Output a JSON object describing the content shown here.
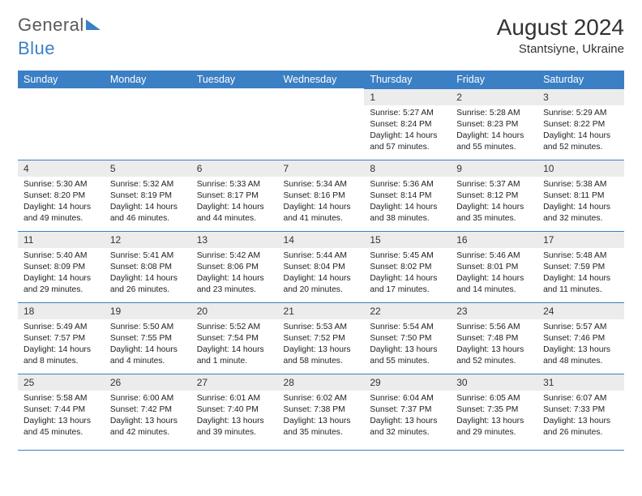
{
  "brand": {
    "part1": "General",
    "part2": "Blue"
  },
  "title": "August 2024",
  "location": "Stantsiyne, Ukraine",
  "colors": {
    "header_bg": "#3b7fc4",
    "header_text": "#ffffff",
    "daynum_bg": "#ececec",
    "text": "#222222",
    "rule": "#3b7fc4",
    "page_bg": "#ffffff"
  },
  "typography": {
    "month_title_fontsize": 28,
    "location_fontsize": 15,
    "dayheader_fontsize": 12.5,
    "daynum_fontsize": 12,
    "body_fontsize": 10.3
  },
  "day_headers": [
    "Sunday",
    "Monday",
    "Tuesday",
    "Wednesday",
    "Thursday",
    "Friday",
    "Saturday"
  ],
  "weeks": [
    [
      null,
      null,
      null,
      null,
      {
        "n": "1",
        "sr": "Sunrise: 5:27 AM",
        "ss": "Sunset: 8:24 PM",
        "dl": "Daylight: 14 hours and 57 minutes."
      },
      {
        "n": "2",
        "sr": "Sunrise: 5:28 AM",
        "ss": "Sunset: 8:23 PM",
        "dl": "Daylight: 14 hours and 55 minutes."
      },
      {
        "n": "3",
        "sr": "Sunrise: 5:29 AM",
        "ss": "Sunset: 8:22 PM",
        "dl": "Daylight: 14 hours and 52 minutes."
      }
    ],
    [
      {
        "n": "4",
        "sr": "Sunrise: 5:30 AM",
        "ss": "Sunset: 8:20 PM",
        "dl": "Daylight: 14 hours and 49 minutes."
      },
      {
        "n": "5",
        "sr": "Sunrise: 5:32 AM",
        "ss": "Sunset: 8:19 PM",
        "dl": "Daylight: 14 hours and 46 minutes."
      },
      {
        "n": "6",
        "sr": "Sunrise: 5:33 AM",
        "ss": "Sunset: 8:17 PM",
        "dl": "Daylight: 14 hours and 44 minutes."
      },
      {
        "n": "7",
        "sr": "Sunrise: 5:34 AM",
        "ss": "Sunset: 8:16 PM",
        "dl": "Daylight: 14 hours and 41 minutes."
      },
      {
        "n": "8",
        "sr": "Sunrise: 5:36 AM",
        "ss": "Sunset: 8:14 PM",
        "dl": "Daylight: 14 hours and 38 minutes."
      },
      {
        "n": "9",
        "sr": "Sunrise: 5:37 AM",
        "ss": "Sunset: 8:12 PM",
        "dl": "Daylight: 14 hours and 35 minutes."
      },
      {
        "n": "10",
        "sr": "Sunrise: 5:38 AM",
        "ss": "Sunset: 8:11 PM",
        "dl": "Daylight: 14 hours and 32 minutes."
      }
    ],
    [
      {
        "n": "11",
        "sr": "Sunrise: 5:40 AM",
        "ss": "Sunset: 8:09 PM",
        "dl": "Daylight: 14 hours and 29 minutes."
      },
      {
        "n": "12",
        "sr": "Sunrise: 5:41 AM",
        "ss": "Sunset: 8:08 PM",
        "dl": "Daylight: 14 hours and 26 minutes."
      },
      {
        "n": "13",
        "sr": "Sunrise: 5:42 AM",
        "ss": "Sunset: 8:06 PM",
        "dl": "Daylight: 14 hours and 23 minutes."
      },
      {
        "n": "14",
        "sr": "Sunrise: 5:44 AM",
        "ss": "Sunset: 8:04 PM",
        "dl": "Daylight: 14 hours and 20 minutes."
      },
      {
        "n": "15",
        "sr": "Sunrise: 5:45 AM",
        "ss": "Sunset: 8:02 PM",
        "dl": "Daylight: 14 hours and 17 minutes."
      },
      {
        "n": "16",
        "sr": "Sunrise: 5:46 AM",
        "ss": "Sunset: 8:01 PM",
        "dl": "Daylight: 14 hours and 14 minutes."
      },
      {
        "n": "17",
        "sr": "Sunrise: 5:48 AM",
        "ss": "Sunset: 7:59 PM",
        "dl": "Daylight: 14 hours and 11 minutes."
      }
    ],
    [
      {
        "n": "18",
        "sr": "Sunrise: 5:49 AM",
        "ss": "Sunset: 7:57 PM",
        "dl": "Daylight: 14 hours and 8 minutes."
      },
      {
        "n": "19",
        "sr": "Sunrise: 5:50 AM",
        "ss": "Sunset: 7:55 PM",
        "dl": "Daylight: 14 hours and 4 minutes."
      },
      {
        "n": "20",
        "sr": "Sunrise: 5:52 AM",
        "ss": "Sunset: 7:54 PM",
        "dl": "Daylight: 14 hours and 1 minute."
      },
      {
        "n": "21",
        "sr": "Sunrise: 5:53 AM",
        "ss": "Sunset: 7:52 PM",
        "dl": "Daylight: 13 hours and 58 minutes."
      },
      {
        "n": "22",
        "sr": "Sunrise: 5:54 AM",
        "ss": "Sunset: 7:50 PM",
        "dl": "Daylight: 13 hours and 55 minutes."
      },
      {
        "n": "23",
        "sr": "Sunrise: 5:56 AM",
        "ss": "Sunset: 7:48 PM",
        "dl": "Daylight: 13 hours and 52 minutes."
      },
      {
        "n": "24",
        "sr": "Sunrise: 5:57 AM",
        "ss": "Sunset: 7:46 PM",
        "dl": "Daylight: 13 hours and 48 minutes."
      }
    ],
    [
      {
        "n": "25",
        "sr": "Sunrise: 5:58 AM",
        "ss": "Sunset: 7:44 PM",
        "dl": "Daylight: 13 hours and 45 minutes."
      },
      {
        "n": "26",
        "sr": "Sunrise: 6:00 AM",
        "ss": "Sunset: 7:42 PM",
        "dl": "Daylight: 13 hours and 42 minutes."
      },
      {
        "n": "27",
        "sr": "Sunrise: 6:01 AM",
        "ss": "Sunset: 7:40 PM",
        "dl": "Daylight: 13 hours and 39 minutes."
      },
      {
        "n": "28",
        "sr": "Sunrise: 6:02 AM",
        "ss": "Sunset: 7:38 PM",
        "dl": "Daylight: 13 hours and 35 minutes."
      },
      {
        "n": "29",
        "sr": "Sunrise: 6:04 AM",
        "ss": "Sunset: 7:37 PM",
        "dl": "Daylight: 13 hours and 32 minutes."
      },
      {
        "n": "30",
        "sr": "Sunrise: 6:05 AM",
        "ss": "Sunset: 7:35 PM",
        "dl": "Daylight: 13 hours and 29 minutes."
      },
      {
        "n": "31",
        "sr": "Sunrise: 6:07 AM",
        "ss": "Sunset: 7:33 PM",
        "dl": "Daylight: 13 hours and 26 minutes."
      }
    ]
  ]
}
